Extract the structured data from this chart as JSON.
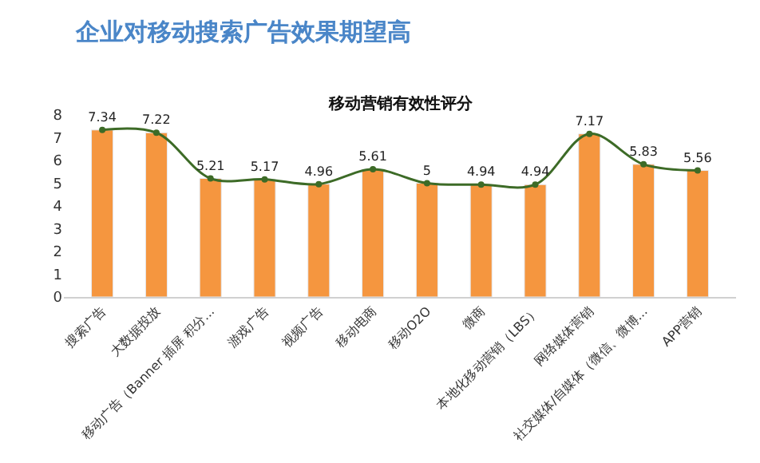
{
  "chart_data": {
    "type": "bar",
    "title": "企业对移动搜索广告效果期望高",
    "subtitle": "移动营销有效性评分",
    "categories": [
      "搜索广告",
      "大数据投放",
      "移动广告（Banner 插屏 积分...",
      "游戏广告",
      "视频广告",
      "移动电商",
      "移动O2O",
      "微商",
      "本地化移动营销（LBS）",
      "网络媒体营销",
      "社交媒体/自媒体（微信、微博...",
      "APP营销"
    ],
    "series": [
      {
        "color": "#f5963f",
        "values": [
          7.34,
          7.22,
          5.21,
          5.17,
          4.96,
          5.61,
          5,
          4.94,
          4.94,
          7.17,
          5.83,
          5.56
        ]
      },
      {
        "type": "line",
        "color": "#3d6b27",
        "values": [
          7.34,
          7.22,
          5.21,
          5.17,
          4.96,
          5.61,
          5,
          4.94,
          4.94,
          7.17,
          5.83,
          5.56
        ],
        "value_labels": [
          "7.34",
          "7.22",
          "5.21",
          "5.17",
          "4.96",
          "5.61",
          "5",
          "4.94",
          "4.94",
          "7.17",
          "5.83",
          "5.56"
        ]
      }
    ],
    "ylim": [
      0,
      8
    ],
    "yticks": [
      0,
      1,
      2,
      3,
      4,
      5,
      6,
      7,
      8
    ],
    "marker": "circle",
    "line_style": "solid"
  }
}
